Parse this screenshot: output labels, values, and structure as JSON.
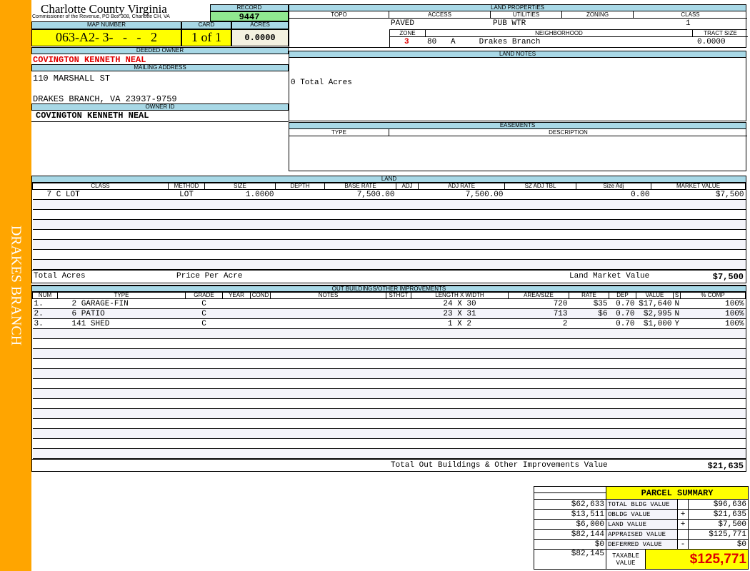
{
  "side_label": "DRAKES BRANCH",
  "header": {
    "county": "Charlotte County Virginia",
    "office": "Commissioner of the Revenue, PO Box 308, Charlotte CH, VA",
    "record_label": "RECORD",
    "record": "9447",
    "map_number_label": "MAP NUMBER",
    "map_number": "063-A2- 3-   -   -   2",
    "card_label": "CARD",
    "card": "1 of 1",
    "acres_label": "ACRES",
    "acres": "0.0000"
  },
  "owner": {
    "deeded_label": "DEEDED OWNER",
    "deeded": "COVINGTON KENNETH NEAL",
    "mailing_label": "MAILING ADDRESS",
    "address1": "110 MARSHALL ST",
    "address2": "DRAKES BRANCH, VA 23937-9759",
    "owner_id_label": "OWNER ID",
    "owner_id": "COVINGTON KENNETH NEAL"
  },
  "land_properties": {
    "title": "LAND PROPERTIES",
    "topo_label": "TOPO",
    "access_label": "ACCESS",
    "utilities_label": "UTILITIES",
    "zoning_label": "ZONING",
    "class_label": "CLASS",
    "access": "PAVED",
    "utilities": "PUB WTR",
    "class": "1",
    "zone_label": "ZONE",
    "neighborhood_label": "NEIGHBORHOOD",
    "tract_label": "TRACT SIZE",
    "zone": "3",
    "neighborhood": "80   A     Drakes Branch",
    "tract": "0.0000"
  },
  "land_notes": {
    "title": "LAND NOTES",
    "text": "0 Total Acres"
  },
  "easements": {
    "title": "EASEMENTS",
    "type_label": "TYPE",
    "desc_label": "DESCRIPTION"
  },
  "land": {
    "title": "LAND",
    "columns": [
      "CLASS",
      "METHOD",
      "SIZE",
      "DEPTH",
      "BASE RATE",
      "ADJ",
      "ADJ RATE",
      "SZ ADJ TBL",
      "Size Adj",
      "MARKET VALUE"
    ],
    "rows": [
      [
        "7 C LOT",
        "LOT",
        "1.0000",
        "",
        "7,500.00",
        "",
        "7,500.00",
        "",
        "0.00",
        "$7,500"
      ]
    ],
    "total_acres_label": "Total Acres",
    "price_per_acre_label": "Price Per Acre",
    "market_label": "Land Market Value",
    "market_value": "$7,500"
  },
  "outbuildings": {
    "title": "OUT BUILDINGS/OTHER IMPROVEMENTS",
    "columns": [
      "NUM",
      "TYPE",
      "GRADE",
      "YEAR",
      "COND",
      "NOTES",
      "STHGT",
      "LENGTH X WIDTH",
      "AREA/SIZE",
      "RATE",
      "DEP",
      "VALUE",
      "S",
      "% COMP"
    ],
    "rows": [
      [
        "1.",
        "2 GARAGE-FIN",
        "C",
        "",
        "",
        "",
        "",
        "24 X 30",
        "720",
        "$35",
        "0.70",
        "$17,640",
        "N",
        "100%"
      ],
      [
        "2.",
        "6 PATIO",
        "C",
        "",
        "",
        "",
        "",
        "23 X 31",
        "713",
        "$6",
        "0.70",
        "$2,995",
        "N",
        "100%"
      ],
      [
        "3.",
        "141 SHED",
        "C",
        "",
        "",
        "",
        "",
        "1 X 2",
        "2",
        "",
        "0.70",
        "$1,000",
        "Y",
        "100%"
      ]
    ],
    "total_label": "Total Out Buildings & Other Improvements Value",
    "total": "$21,635"
  },
  "summary": {
    "title": "PARCEL SUMMARY",
    "rows": [
      {
        "prior": "$62,633",
        "label": "TOTAL BLDG VALUE",
        "op": "",
        "value": "$96,636"
      },
      {
        "prior": "$13,511",
        "label": "OBLDG VALUE",
        "op": "+",
        "value": "$21,635"
      },
      {
        "prior": "$6,000",
        "label": "LAND VALUE",
        "op": "+",
        "value": "$7,500"
      },
      {
        "prior": "$82,144",
        "label": "APPRAISED VALUE",
        "op": "",
        "value": "$125,771"
      },
      {
        "prior": "$0",
        "label": "DEFERRED VALUE",
        "op": "-",
        "value": "$0"
      }
    ],
    "taxable_prior": "$82,145",
    "taxable_label": "TAXABLE VALUE",
    "taxable": "$125,771"
  },
  "colors": {
    "orange": "#ffa500",
    "header_blue": "#a8d8e6",
    "yellow": "#ffff00",
    "green": "#90e890",
    "red": "#e00000"
  }
}
